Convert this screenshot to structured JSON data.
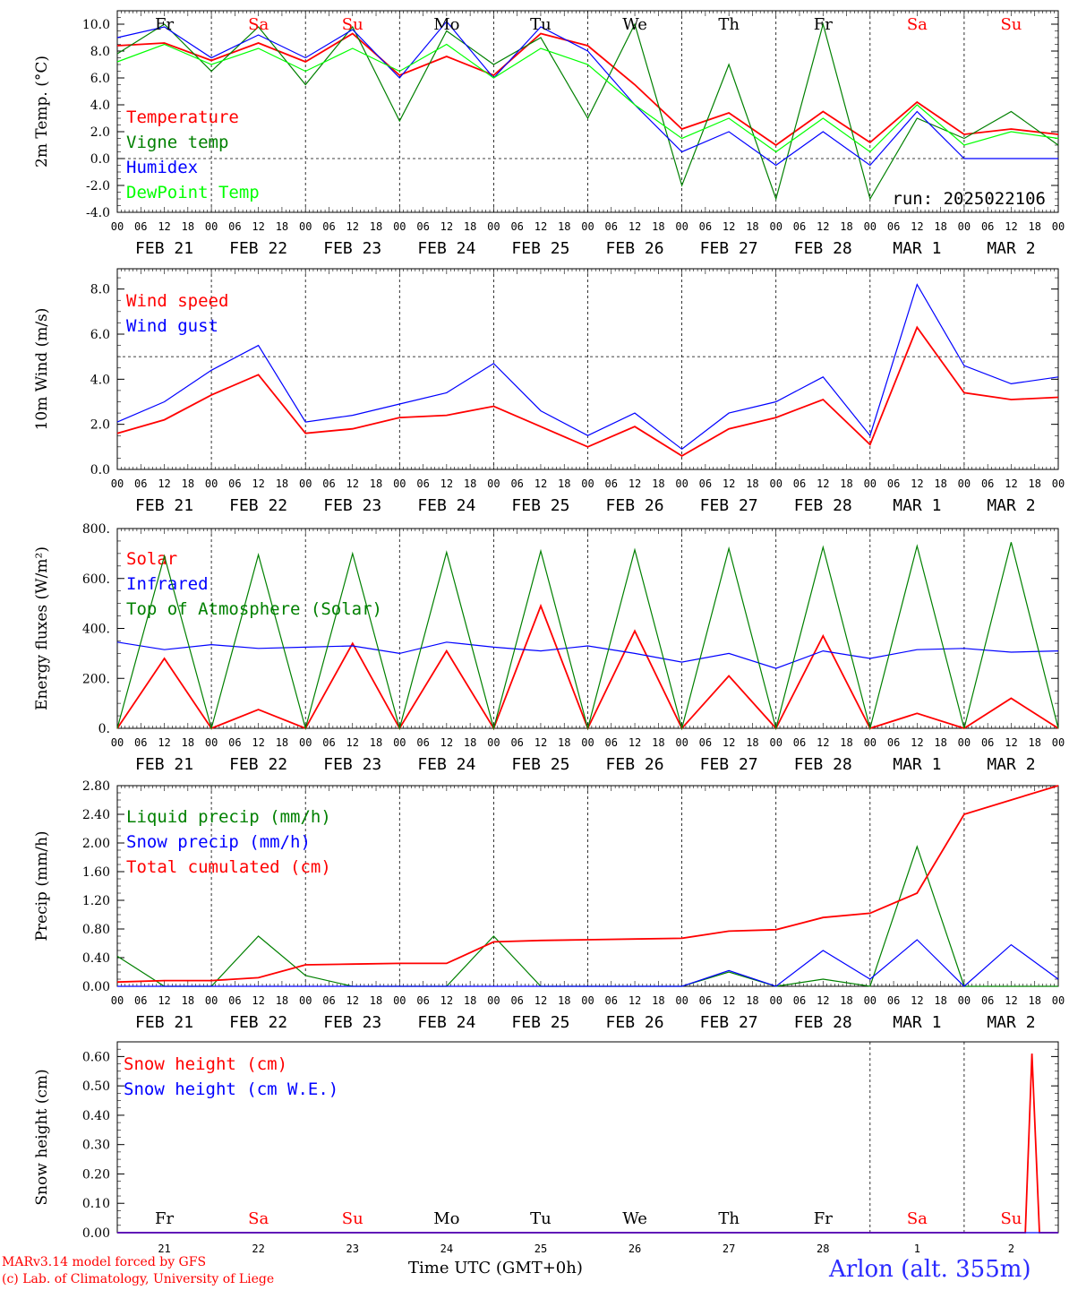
{
  "footer": {
    "model_line": "MARv3.14 model forced by GFS",
    "lab_line": "(c) Lab. of Climatology, University of Liege",
    "time_label": "Time UTC (GMT+0h)",
    "station": "Arlon (alt. 355m)"
  },
  "common": {
    "hour_labels": [
      "00",
      "06",
      "12",
      "18"
    ],
    "date_labels": [
      "FEB 21",
      "FEB 22",
      "FEB 23",
      "FEB 24",
      "FEB 25",
      "FEB 26",
      "FEB 27",
      "FEB 28",
      "MAR  1",
      "MAR  2"
    ],
    "day_names": [
      {
        "label": "Fr",
        "color": "#000000"
      },
      {
        "label": "Sa",
        "color": "#ff0000"
      },
      {
        "label": "Su",
        "color": "#ff0000"
      },
      {
        "label": "Mo",
        "color": "#000000"
      },
      {
        "label": "Tu",
        "color": "#000000"
      },
      {
        "label": "We",
        "color": "#000000"
      },
      {
        "label": "Th",
        "color": "#000000"
      },
      {
        "label": "Fr",
        "color": "#000000"
      },
      {
        "label": "Sa",
        "color": "#ff0000"
      },
      {
        "label": "Su",
        "color": "#ff0000"
      }
    ],
    "day_numbers": [
      "21",
      "22",
      "23",
      "24",
      "25",
      "26",
      "27",
      "28",
      "1",
      "2"
    ]
  },
  "chart_data": [
    {
      "type": "line",
      "ylabel": "2m Temp. (°C)",
      "ylim": [
        -4,
        11
      ],
      "yticks": [
        "-4.0",
        "-2.0",
        "0.0",
        "2.0",
        "4.0",
        "6.0",
        "8.0",
        "10.0"
      ],
      "ref_line": 0,
      "run": "run: 2025022106",
      "x_days": [
        0,
        0.5,
        1,
        1.5,
        2,
        2.5,
        3,
        3.5,
        4,
        4.5,
        5,
        5.5,
        6,
        6.5,
        7,
        7.5,
        8,
        8.5,
        9,
        9.5,
        10
      ],
      "series": [
        {
          "name": "Temperature",
          "color": "#ff0000",
          "values": [
            8.4,
            8.6,
            7.3,
            8.6,
            7.2,
            9.3,
            6.2,
            7.6,
            6.2,
            9.3,
            8.4,
            5.5,
            2.2,
            3.4,
            1.0,
            3.5,
            1.2,
            4.2,
            1.8,
            2.2,
            1.8
          ]
        },
        {
          "name": "Vigne temp",
          "color": "#008000",
          "values": [
            7.8,
            10.0,
            6.5,
            9.8,
            5.5,
            9.8,
            2.8,
            9.5,
            7.0,
            9.0,
            3.0,
            10.0,
            -2.0,
            7.0,
            -3.0,
            10.0,
            -3.0,
            3.0,
            1.5,
            3.5,
            1.0
          ]
        },
        {
          "name": "Humidex",
          "color": "#0000ff",
          "values": [
            9.0,
            9.8,
            7.5,
            9.2,
            7.5,
            9.6,
            6.0,
            10.2,
            6.0,
            9.8,
            8.0,
            4.0,
            0.5,
            2.0,
            -0.5,
            2.0,
            -0.5,
            3.5,
            0.0,
            0.0,
            0.0
          ]
        },
        {
          "name": "DewPoint Temp",
          "color": "#00ff00",
          "values": [
            7.2,
            8.5,
            7.0,
            8.2,
            6.5,
            8.2,
            6.5,
            8.5,
            6.0,
            8.2,
            7.0,
            4.0,
            1.5,
            3.0,
            0.5,
            3.0,
            0.5,
            4.0,
            1.0,
            2.0,
            1.5
          ]
        }
      ]
    },
    {
      "type": "line",
      "ylabel": "10m Wind (m/s)",
      "ylim": [
        0,
        8.9
      ],
      "yticks": [
        "0.0",
        "2.0",
        "4.0",
        "6.0",
        "8.0"
      ],
      "ref_line": 5,
      "x_days": [
        0,
        0.5,
        1,
        1.5,
        2,
        2.5,
        3,
        3.5,
        4,
        4.5,
        5,
        5.5,
        6,
        6.5,
        7,
        7.5,
        8,
        8.5,
        9,
        9.5,
        10
      ],
      "series": [
        {
          "name": "Wind speed",
          "color": "#ff0000",
          "values": [
            1.6,
            2.2,
            3.3,
            4.2,
            1.6,
            1.8,
            2.3,
            2.4,
            2.8,
            1.9,
            1.0,
            1.9,
            0.6,
            1.8,
            2.3,
            3.1,
            1.1,
            6.3,
            3.4,
            3.1,
            3.2
          ]
        },
        {
          "name": "Wind gust",
          "color": "#0000ff",
          "values": [
            2.1,
            3.0,
            4.4,
            5.5,
            2.1,
            2.4,
            2.9,
            3.4,
            4.7,
            2.6,
            1.5,
            2.5,
            0.9,
            2.5,
            3.0,
            4.1,
            1.5,
            8.2,
            4.6,
            3.8,
            4.1
          ]
        }
      ]
    },
    {
      "type": "line",
      "ylabel": "Energy fluxes (W/m²)",
      "ylim": [
        0,
        800
      ],
      "yticks": [
        "0.",
        "200.",
        "400.",
        "600.",
        "800."
      ],
      "x_days": [
        0,
        0.5,
        1,
        1.5,
        2,
        2.5,
        3,
        3.5,
        4,
        4.5,
        5,
        5.5,
        6,
        6.5,
        7,
        7.5,
        8,
        8.5,
        9,
        9.5,
        10
      ],
      "series": [
        {
          "name": "Solar",
          "color": "#ff0000",
          "values": [
            0,
            280,
            0,
            75,
            0,
            340,
            0,
            310,
            0,
            490,
            0,
            390,
            0,
            210,
            0,
            370,
            0,
            60,
            0,
            120,
            0
          ]
        },
        {
          "name": "Infrared",
          "color": "#0000ff",
          "values": [
            345,
            315,
            335,
            320,
            325,
            330,
            300,
            345,
            325,
            310,
            330,
            300,
            265,
            300,
            240,
            310,
            280,
            315,
            320,
            305,
            310
          ]
        },
        {
          "name": "Top of Atmosphere (Solar)",
          "color": "#008000",
          "values": [
            0,
            690,
            0,
            695,
            0,
            700,
            0,
            705,
            0,
            710,
            0,
            715,
            0,
            720,
            0,
            725,
            0,
            730,
            0,
            745,
            0
          ]
        }
      ]
    },
    {
      "type": "line",
      "ylabel": "Precip (mm/h)",
      "ylim": [
        0,
        2.8
      ],
      "yticks": [
        "0.00",
        "0.40",
        "0.80",
        "1.20",
        "1.60",
        "2.00",
        "2.40",
        "2.80"
      ],
      "x_days": [
        0,
        0.5,
        1,
        1.5,
        2,
        2.5,
        3,
        3.5,
        4,
        4.5,
        5,
        5.5,
        6,
        6.5,
        7,
        7.5,
        8,
        8.5,
        9,
        9.5,
        10
      ],
      "series": [
        {
          "name": "Liquid precip (mm/h)",
          "color": "#008000",
          "values": [
            0.42,
            0.0,
            0.0,
            0.7,
            0.15,
            0.0,
            0.0,
            0.0,
            0.7,
            0.0,
            0.0,
            0.0,
            0.0,
            0.2,
            0.0,
            0.1,
            0.0,
            1.95,
            0.0,
            0.0,
            0.0
          ]
        },
        {
          "name": "Snow precip (mm/h)",
          "color": "#0000ff",
          "values": [
            0.0,
            0.0,
            0.0,
            0.0,
            0.0,
            0.0,
            0.0,
            0.0,
            0.0,
            0.0,
            0.0,
            0.0,
            0.0,
            0.22,
            0.0,
            0.5,
            0.1,
            0.65,
            0.0,
            0.58,
            0.1
          ]
        },
        {
          "name": "Total cumulated (cm)",
          "color": "#ff0000",
          "values": [
            0.06,
            0.08,
            0.08,
            0.12,
            0.3,
            0.31,
            0.32,
            0.32,
            0.62,
            0.64,
            0.65,
            0.66,
            0.67,
            0.77,
            0.79,
            0.96,
            1.02,
            1.3,
            2.4,
            2.6,
            2.8
          ]
        }
      ]
    },
    {
      "type": "line",
      "ylabel": "Snow height (cm)",
      "ylim": [
        0,
        0.65
      ],
      "yticks": [
        "0.00",
        "0.10",
        "0.20",
        "0.30",
        "0.40",
        "0.50",
        "0.60"
      ],
      "x_days": [
        0,
        1,
        2,
        3,
        4,
        5,
        6,
        7,
        8,
        9,
        9.65,
        9.72,
        9.8,
        10
      ],
      "series": [
        {
          "name": "Snow height (cm)",
          "color": "#ff0000",
          "values": [
            0,
            0,
            0,
            0,
            0,
            0,
            0,
            0,
            0,
            0,
            0,
            0.61,
            0,
            0
          ]
        },
        {
          "name": "Snow height (cm W.E.)",
          "color": "#0000ff",
          "values": [
            0,
            0,
            0,
            0,
            0,
            0,
            0,
            0,
            0,
            0,
            0,
            0,
            0,
            0
          ]
        }
      ]
    }
  ]
}
